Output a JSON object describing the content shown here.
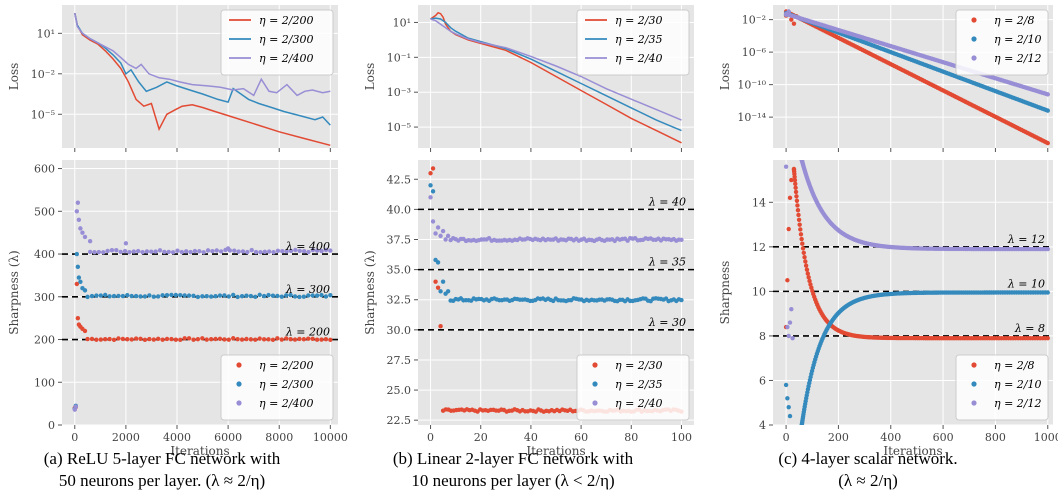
{
  "colors": {
    "red": "#e24a33",
    "blue": "#348abd",
    "purple": "#988ed5",
    "panel_bg": "#e5e5e5",
    "grid": "#ffffff"
  },
  "captions": [
    {
      "line1": "(a) ReLU 5-layer FC network with",
      "line2": "50 neurons per layer. (λ ≈ 2/η)"
    },
    {
      "line1": "(b) Linear 2-layer FC network with",
      "line2": "10 neurons per layer (λ < 2/η)"
    },
    {
      "line1": "(c) 4-layer scalar network.",
      "line2": "(λ ≈ 2/η)"
    }
  ],
  "chart_data": [
    {
      "id": "a-loss",
      "type": "line",
      "ylabel": "Loss",
      "xlabel": "",
      "yscale": "log",
      "xlim": [
        -500,
        10300
      ],
      "ylim_log10": [
        -7.5,
        3.1
      ],
      "xticks": [
        0,
        2000,
        4000,
        6000,
        8000,
        10000
      ],
      "xtick_labels": [],
      "yticks_log10": [
        1,
        -2,
        -5
      ],
      "ytick_labels": [
        "10¹",
        "10⁻²",
        "10⁻⁵"
      ],
      "legend": {
        "position": "top-right",
        "entries": [
          "η = 2/200",
          "η = 2/300",
          "η = 2/400"
        ]
      },
      "series": [
        {
          "name": "η = 2/200",
          "color": "red",
          "x": [
            0,
            100,
            300,
            600,
            900,
            1200,
            1500,
            1800,
            2100,
            2400,
            2700,
            3000,
            3300,
            3600,
            3900,
            4200,
            4600,
            5000,
            5500,
            6000,
            7000,
            8000,
            9000,
            10000
          ],
          "log10_y": [
            2.5,
            1.6,
            0.9,
            0.5,
            0.2,
            -0.3,
            -0.9,
            -1.6,
            -2.6,
            -3.9,
            -4.4,
            -4.2,
            -6.1,
            -5.0,
            -4.7,
            -4.4,
            -4.3,
            -4.5,
            -4.8,
            -5.1,
            -5.7,
            -6.3,
            -6.8,
            -7.3
          ]
        },
        {
          "name": "η = 2/300",
          "color": "blue",
          "x": [
            0,
            100,
            300,
            600,
            900,
            1200,
            1500,
            1800,
            2000,
            2200,
            2500,
            2800,
            3200,
            3600,
            4000,
            4500,
            5000,
            5600,
            6000,
            6200,
            6500,
            6800,
            7200,
            7700,
            8200,
            8800,
            9400,
            9700,
            10000
          ],
          "log10_y": [
            2.5,
            1.6,
            1.0,
            0.6,
            0.3,
            -0.1,
            -0.6,
            -1.2,
            -2.0,
            -1.7,
            -2.6,
            -3.3,
            -3.0,
            -2.6,
            -2.9,
            -3.2,
            -3.5,
            -3.9,
            -4.1,
            -3.1,
            -3.5,
            -3.9,
            -4.2,
            -4.5,
            -4.8,
            -5.1,
            -5.4,
            -5.2,
            -5.8
          ]
        },
        {
          "name": "η = 2/400",
          "color": "purple",
          "x": [
            0,
            100,
            300,
            600,
            900,
            1200,
            1500,
            1800,
            2100,
            2400,
            2600,
            2900,
            3300,
            3700,
            4100,
            4600,
            5200,
            5700,
            6200,
            6600,
            7000,
            7300,
            7600,
            7900,
            8300,
            8700,
            9000,
            9300,
            9700,
            10000
          ],
          "log10_y": [
            2.5,
            1.5,
            1.0,
            0.6,
            0.3,
            0.0,
            -0.3,
            -0.8,
            -1.3,
            -1.6,
            -1.3,
            -2.0,
            -2.3,
            -2.4,
            -2.6,
            -2.8,
            -2.9,
            -3.0,
            -3.2,
            -3.1,
            -3.6,
            -2.4,
            -3.3,
            -3.4,
            -2.8,
            -3.6,
            -3.3,
            -3.2,
            -3.4,
            -3.3
          ]
        }
      ]
    },
    {
      "id": "a-sharp",
      "type": "scatter",
      "ylabel": "Sharpness (λ)",
      "xlabel": "Iterations",
      "xlim": [
        -500,
        10300
      ],
      "ylim": [
        0,
        620
      ],
      "xticks": [
        0,
        2000,
        4000,
        6000,
        8000,
        10000
      ],
      "xtick_labels": [
        "0",
        "2000",
        "4000",
        "6000",
        "8000",
        "10000"
      ],
      "yticks": [
        0,
        100,
        200,
        300,
        400,
        500,
        600
      ],
      "ytick_labels": [
        "0",
        "100",
        "200",
        "300",
        "400",
        "500",
        "600"
      ],
      "hlines": [
        {
          "y": 200,
          "label": "λ = 200"
        },
        {
          "y": 300,
          "label": "λ = 300"
        },
        {
          "y": 400,
          "label": "λ = 400"
        }
      ],
      "legend": {
        "position": "bottom-right",
        "entries": [
          "η = 2/200",
          "η = 2/300",
          "η = 2/400"
        ]
      },
      "series": [
        {
          "name": "η = 2/200",
          "color": "red",
          "init": [
            [
              0,
              40
            ],
            [
              40,
              42
            ],
            [
              80,
              330
            ],
            [
              120,
              250
            ],
            [
              160,
              235
            ],
            [
              220,
              230
            ],
            [
              300,
              225
            ],
            [
              400,
              220
            ]
          ],
          "plateau": 201,
          "noise": 2,
          "x_from": 500,
          "x_to": 10000,
          "n": 55
        },
        {
          "name": "η = 2/300",
          "color": "blue",
          "init": [
            [
              0,
              38
            ],
            [
              40,
              45
            ],
            [
              80,
              400
            ],
            [
              120,
              370
            ],
            [
              160,
              345
            ],
            [
              220,
              335
            ],
            [
              300,
              320
            ],
            [
              400,
              315
            ]
          ],
          "plateau": 302,
          "noise": 2.5,
          "x_from": 500,
          "x_to": 10000,
          "n": 55
        },
        {
          "name": "η = 2/400",
          "color": "purple",
          "init": [
            [
              0,
              36
            ],
            [
              40,
              43
            ],
            [
              80,
              500
            ],
            [
              120,
              520
            ],
            [
              160,
              480
            ],
            [
              220,
              460
            ],
            [
              300,
              450
            ],
            [
              400,
              440
            ],
            [
              600,
              430
            ],
            [
              2000,
              425
            ],
            [
              6000,
              413
            ]
          ],
          "plateau": 407,
          "noise": 3,
          "x_from": 600,
          "x_to": 10000,
          "n": 55
        }
      ]
    },
    {
      "id": "b-loss",
      "type": "line",
      "ylabel": "Loss",
      "xlabel": "",
      "yscale": "log",
      "xlim": [
        -5,
        105
      ],
      "ylim_log10": [
        -6.2,
        2.0
      ],
      "xticks": [
        0,
        20,
        40,
        60,
        80,
        100
      ],
      "xtick_labels": [],
      "yticks_log10": [
        1,
        -1,
        -3,
        -5
      ],
      "ytick_labels": [
        "10¹",
        "10⁻¹",
        "10⁻³",
        "10⁻⁵"
      ],
      "legend": {
        "position": "top-right",
        "entries": [
          "η = 2/30",
          "η = 2/35",
          "η = 2/40"
        ]
      },
      "series": [
        {
          "name": "η = 2/30",
          "color": "red",
          "x": [
            0,
            2,
            3,
            4,
            5,
            6,
            8,
            10,
            15,
            20,
            30,
            40,
            50,
            60,
            70,
            80,
            90,
            100
          ],
          "log10_y": [
            1.2,
            1.4,
            1.55,
            1.5,
            1.3,
            0.9,
            0.5,
            0.3,
            0.0,
            -0.2,
            -0.6,
            -1.3,
            -2.1,
            -2.9,
            -3.7,
            -4.5,
            -5.2,
            -5.9
          ]
        },
        {
          "name": "η = 2/35",
          "color": "blue",
          "x": [
            0,
            2,
            4,
            6,
            8,
            10,
            15,
            20,
            30,
            40,
            50,
            60,
            70,
            80,
            90,
            100
          ],
          "log10_y": [
            1.2,
            1.25,
            1.2,
            1.0,
            0.7,
            0.5,
            0.1,
            -0.1,
            -0.5,
            -1.1,
            -1.8,
            -2.5,
            -3.2,
            -3.9,
            -4.6,
            -5.2
          ]
        },
        {
          "name": "η = 2/40",
          "color": "purple",
          "x": [
            0,
            2,
            4,
            6,
            8,
            10,
            15,
            20,
            30,
            40,
            50,
            60,
            70,
            80,
            90,
            100
          ],
          "log10_y": [
            1.2,
            1.1,
            0.9,
            0.7,
            0.5,
            0.35,
            0.05,
            -0.15,
            -0.45,
            -0.95,
            -1.5,
            -2.1,
            -2.8,
            -3.4,
            -4.0,
            -4.6
          ]
        }
      ]
    },
    {
      "id": "b-sharp",
      "type": "scatter",
      "ylabel": "Sharpness (λ)",
      "xlabel": "Iterations",
      "xlim": [
        -5,
        105
      ],
      "ylim": [
        22.1,
        44.1
      ],
      "xticks": [
        0,
        20,
        40,
        60,
        80,
        100
      ],
      "xtick_labels": [
        "0",
        "20",
        "40",
        "60",
        "80",
        "100"
      ],
      "yticks": [
        22.5,
        25,
        27.5,
        30,
        32.5,
        35,
        37.5,
        40,
        42.5
      ],
      "ytick_labels": [
        "22.5",
        "25.0",
        "27.5",
        "30.0",
        "32.5",
        "35.0",
        "37.5",
        "40.0",
        "42.5"
      ],
      "hlines": [
        {
          "y": 30,
          "label": "λ = 30"
        },
        {
          "y": 35,
          "label": "λ = 35"
        },
        {
          "y": 40,
          "label": "λ = 40"
        }
      ],
      "legend": {
        "position": "bottom-right",
        "entries": [
          "η = 2/30",
          "η = 2/35",
          "η = 2/40"
        ]
      },
      "series": [
        {
          "name": "η = 2/30",
          "color": "red",
          "init": [
            [
              0,
              43.0
            ],
            [
              1,
              43.4
            ],
            [
              2,
              34.0
            ],
            [
              3,
              33.5
            ],
            [
              4,
              30.3
            ]
          ],
          "plateau": 23.3,
          "noise": 0.1,
          "x_from": 5,
          "x_to": 100,
          "n": 90
        },
        {
          "name": "η = 2/35",
          "color": "blue",
          "init": [
            [
              0,
              42.0
            ],
            [
              1,
              41.5
            ],
            [
              2,
              35.8
            ],
            [
              3,
              35.6
            ],
            [
              4,
              33.2
            ],
            [
              5,
              34.0
            ],
            [
              6,
              33.0
            ],
            [
              7,
              33.2
            ]
          ],
          "plateau": 32.5,
          "noise": 0.12,
          "x_from": 8,
          "x_to": 100,
          "n": 90
        },
        {
          "name": "η = 2/40",
          "color": "purple",
          "init": [
            [
              0,
              41.0
            ],
            [
              1,
              39.0
            ],
            [
              2,
              38.0
            ],
            [
              3,
              38.5
            ],
            [
              4,
              37.8
            ],
            [
              5,
              38.2
            ],
            [
              6,
              37.5
            ],
            [
              7,
              37.8
            ]
          ],
          "plateau": 37.5,
          "noise": 0.12,
          "x_from": 8,
          "x_to": 100,
          "n": 90
        }
      ]
    },
    {
      "id": "c-loss",
      "type": "line",
      "ylabel": "Loss",
      "xlabel": "",
      "yscale": "log",
      "xlim": [
        -50,
        1020
      ],
      "ylim_log10": [
        -17.8,
        -0.2
      ],
      "xticks": [
        0,
        200,
        400,
        600,
        800,
        1000
      ],
      "xtick_labels": [],
      "yticks_log10": [
        -2,
        -6,
        -10,
        -14
      ],
      "ytick_labels": [
        "10⁻²",
        "10⁻⁶",
        "10⁻¹⁰",
        "10⁻¹⁴"
      ],
      "legend": {
        "position": "top-right",
        "entries": [
          "η = 2/8",
          "η = 2/10",
          "η = 2/12"
        ]
      },
      "series": [
        {
          "name": "η = 2/8",
          "color": "red",
          "line_from": [
            0,
            -1.0
          ],
          "line_to": [
            1000,
            -17.2
          ],
          "init": [
            [
              0,
              -1.5
            ],
            [
              10,
              -1.2
            ],
            [
              20,
              -2.0
            ],
            [
              30,
              -2.5
            ],
            [
              40,
              -1.6
            ]
          ]
        },
        {
          "name": "η = 2/10",
          "color": "blue",
          "line_from": [
            0,
            -1.2
          ],
          "line_to": [
            1000,
            -13.2
          ],
          "init": [
            [
              0,
              -1.4
            ],
            [
              10,
              -1.1
            ]
          ]
        },
        {
          "name": "η = 2/12",
          "color": "purple",
          "line_from": [
            0,
            -1.3
          ],
          "line_to": [
            1000,
            -11.2
          ],
          "init": [
            [
              0,
              -1.4
            ],
            [
              10,
              -1.0
            ]
          ]
        }
      ]
    },
    {
      "id": "c-sharp",
      "type": "scatter",
      "ylabel": "Sharpness",
      "xlabel": "Iterations",
      "xlim": [
        -50,
        1020
      ],
      "ylim": [
        4,
        15.9
      ],
      "xticks": [
        0,
        200,
        400,
        600,
        800,
        1000
      ],
      "xtick_labels": [
        "0",
        "200",
        "400",
        "600",
        "800",
        "1000"
      ],
      "yticks": [
        4,
        6,
        8,
        10,
        12,
        14
      ],
      "ytick_labels": [
        "4",
        "6",
        "8",
        "10",
        "12",
        "14"
      ],
      "hlines": [
        {
          "y": 8,
          "label": "λ = 8"
        },
        {
          "y": 10,
          "label": "λ = 10"
        },
        {
          "y": 12,
          "label": "λ = 12"
        }
      ],
      "legend": {
        "position": "bottom-right",
        "entries": [
          "η = 2/8",
          "η = 2/10",
          "η = 2/12"
        ]
      },
      "series": [
        {
          "name": "η = 2/8",
          "color": "red",
          "decay_from": [
            30,
            15.5
          ],
          "plateau": 7.9,
          "tau": 55,
          "init": [
            [
              0,
              8.4
            ],
            [
              5,
              10.5
            ],
            [
              10,
              12.8
            ],
            [
              15,
              14.2
            ],
            [
              20,
              15.0
            ]
          ],
          "x_to": 1000,
          "n": 160
        },
        {
          "name": "η = 2/10",
          "color": "blue",
          "rise_from": [
            60,
            4.0
          ],
          "plateau": 9.95,
          "tau": 75,
          "init": [
            [
              0,
              5.8
            ],
            [
              5,
              5.2
            ],
            [
              10,
              4.8
            ],
            [
              15,
              4.4
            ]
          ],
          "x_to": 1000,
          "n": 160
        },
        {
          "name": "η = 2/12",
          "color": "purple",
          "decay_from": [
            60,
            15.9
          ],
          "plateau": 11.9,
          "tau": 90,
          "init": [
            [
              0,
              15.6
            ],
            [
              5,
              8.4
            ],
            [
              10,
              8.0
            ],
            [
              15,
              8.6
            ],
            [
              20,
              9.2
            ],
            [
              25,
              7.9
            ]
          ],
          "x_to": 1000,
          "n": 160
        }
      ]
    }
  ]
}
